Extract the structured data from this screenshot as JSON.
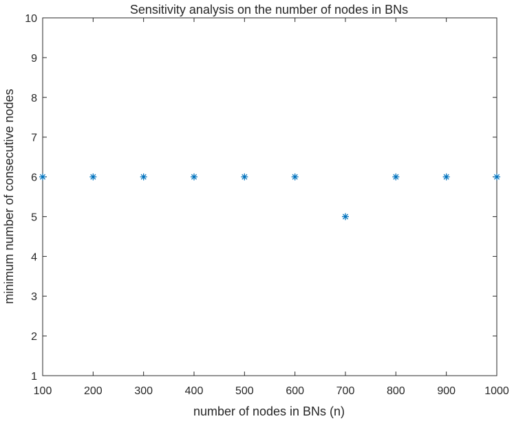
{
  "chart_data": {
    "type": "scatter",
    "title": "Sensitivity analysis on the number of nodes in BNs",
    "xlabel": "number of nodes in BNs (n)",
    "ylabel": "minimum number of consecutive nodes",
    "xlim": [
      100,
      1000
    ],
    "ylim": [
      1,
      10
    ],
    "x_ticks": [
      100,
      200,
      300,
      400,
      500,
      600,
      700,
      800,
      900,
      1000
    ],
    "y_ticks": [
      1,
      2,
      3,
      4,
      5,
      6,
      7,
      8,
      9,
      10
    ],
    "grid": false,
    "marker": "asterisk",
    "marker_color": "#0072BD",
    "series": [
      {
        "x": [
          100,
          200,
          300,
          400,
          500,
          600,
          700,
          800,
          900,
          1000
        ],
        "y": [
          6,
          6,
          6,
          6,
          6,
          6,
          5,
          6,
          6,
          6
        ]
      }
    ]
  }
}
